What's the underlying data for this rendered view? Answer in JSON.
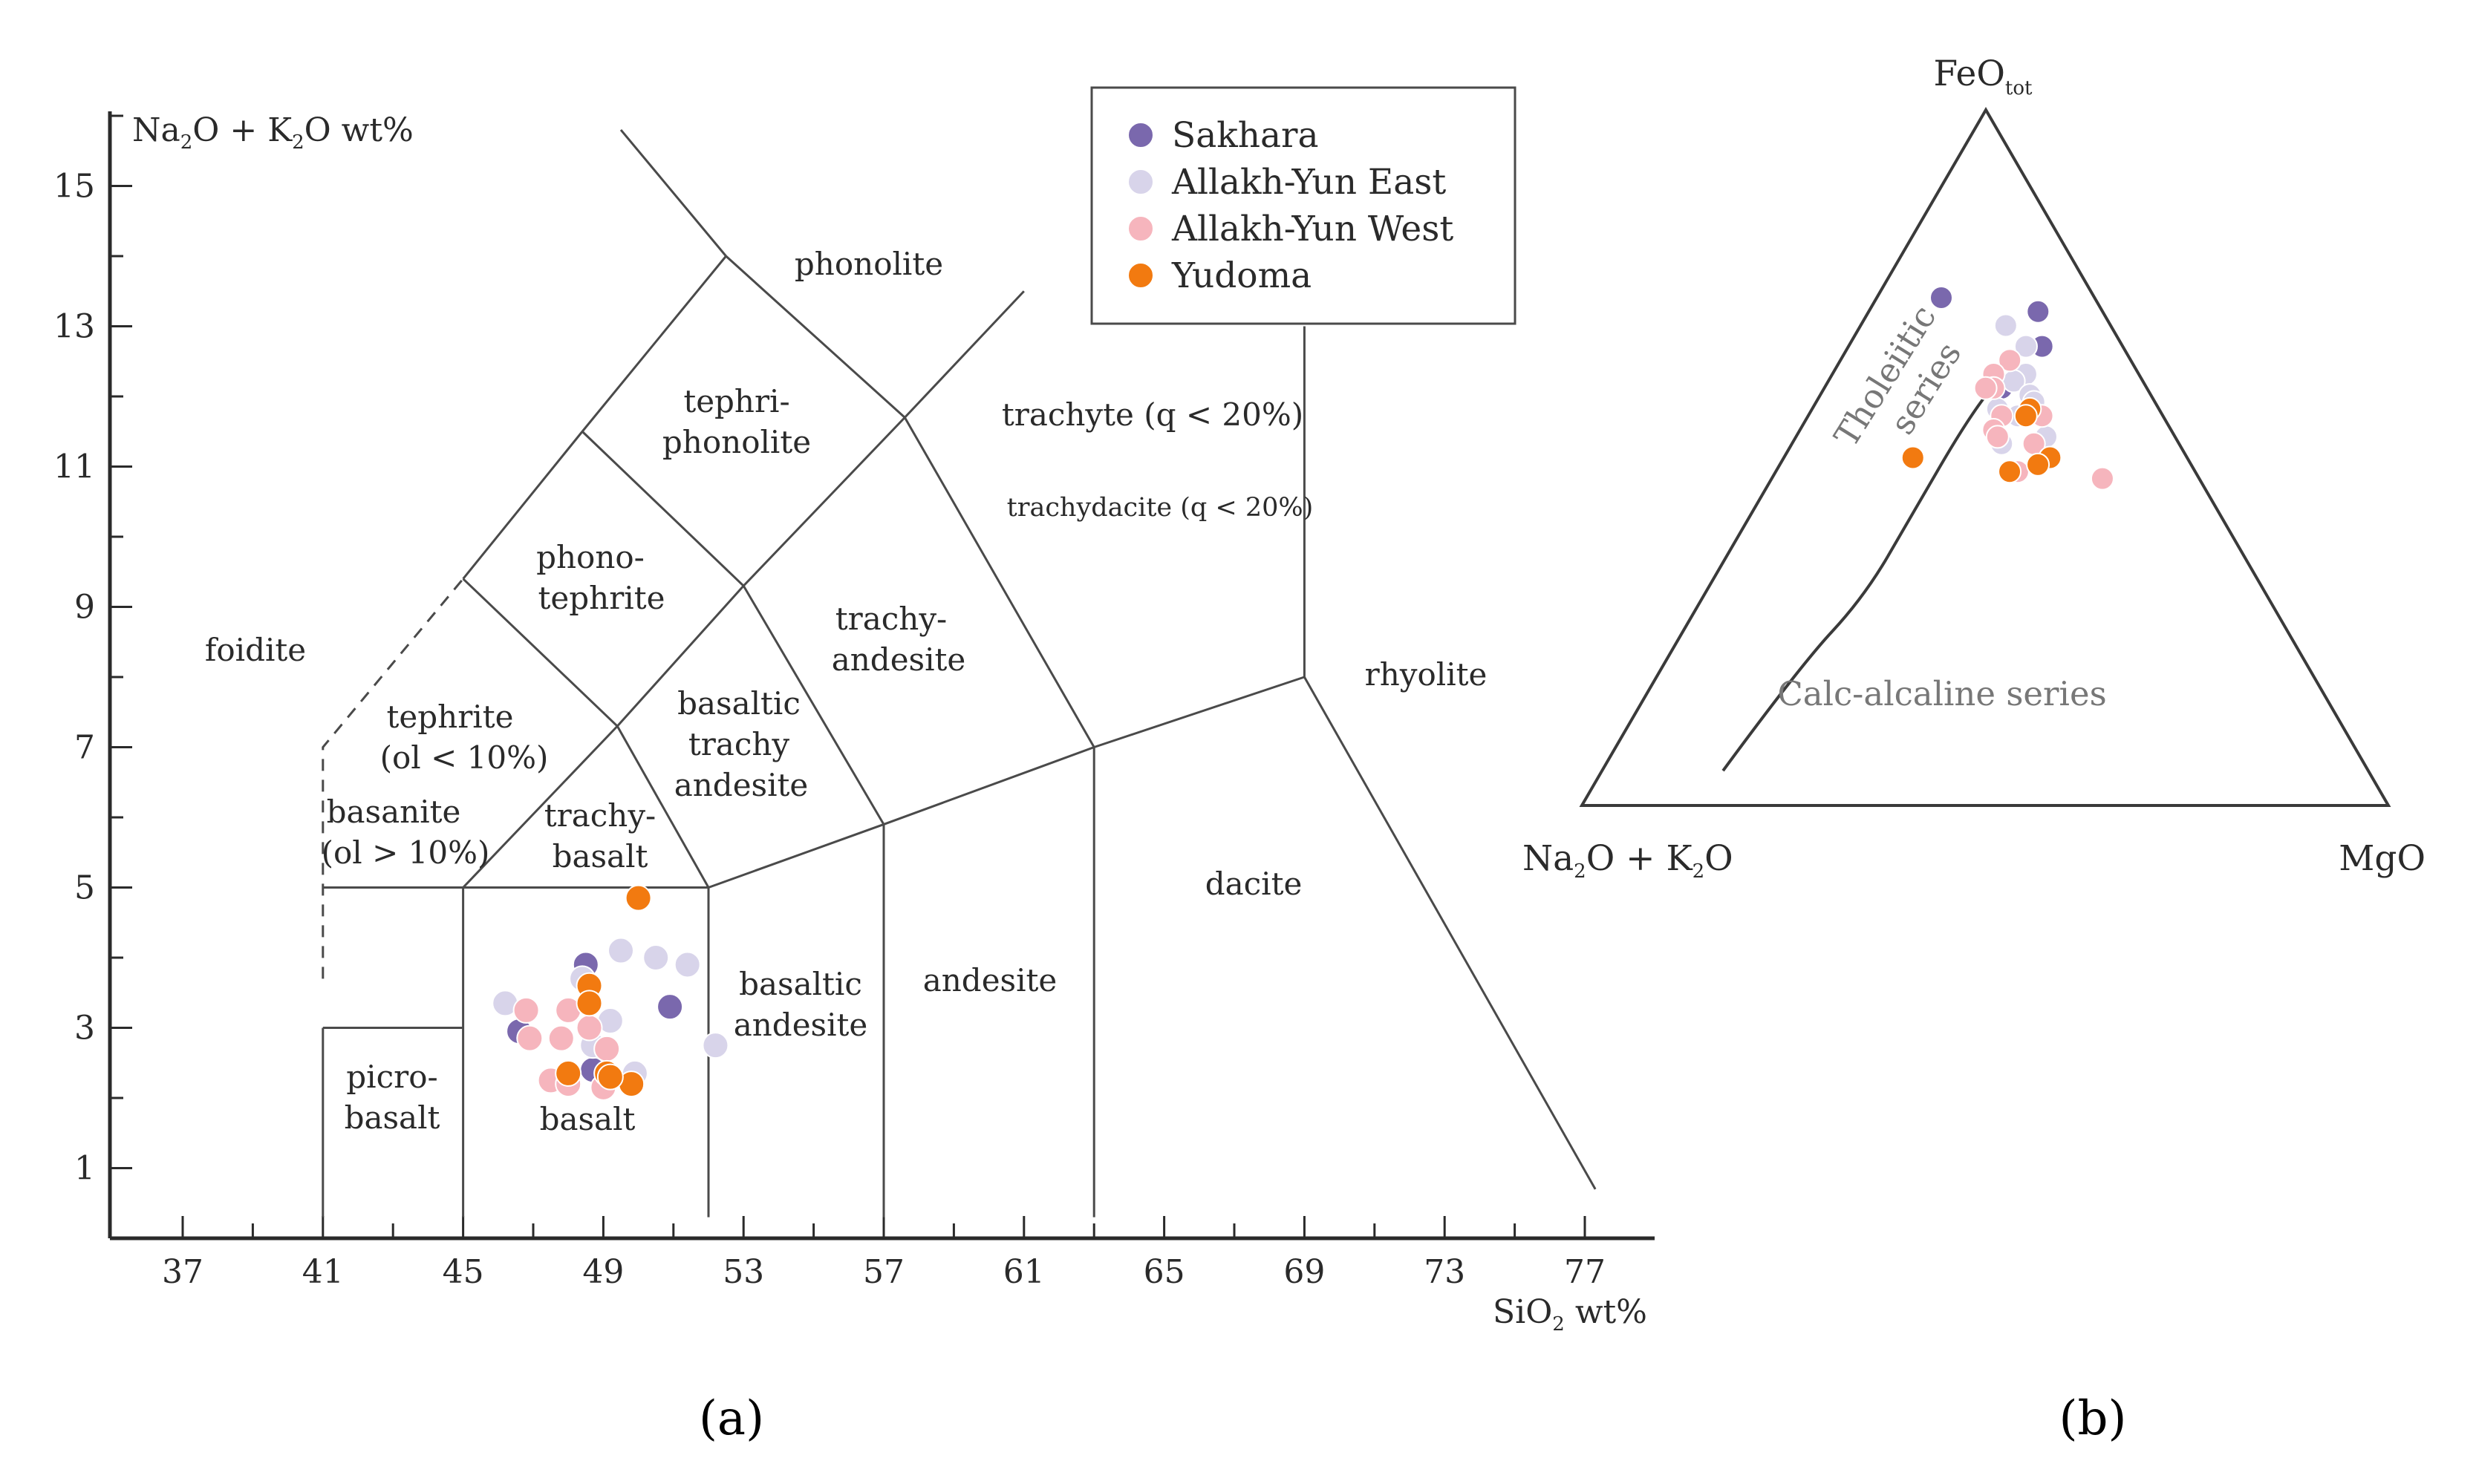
{
  "colors": {
    "sakhara": "#7a68ad",
    "allakh_east": "#d8d4ea",
    "allakh_west": "#f6b5bd",
    "yudoma": "#f27a10",
    "stroke": "#4a4a4a"
  },
  "panel_labels": {
    "a": "(a)",
    "b": "(b)"
  },
  "chart_data": [
    {
      "type": "scatter",
      "title": "",
      "xlabel": {
        "main": "SiO",
        "sub": "2",
        "rest": " wt%"
      },
      "ylabel": {
        "a": "Na",
        "a_sub": "2",
        "b": "O + K",
        "b_sub": "2",
        "c": "O wt%"
      },
      "xlim": [
        35,
        79
      ],
      "ylim": [
        0,
        16
      ],
      "xticks": [
        "37",
        "41",
        "45",
        "49",
        "53",
        "57",
        "61",
        "65",
        "69",
        "73",
        "77"
      ],
      "yticks": [
        "1",
        "3",
        "5",
        "7",
        "9",
        "11",
        "13",
        "15"
      ],
      "legend": {
        "position": "top-right",
        "entries": [
          "Sakhara",
          "Allakh-Yun East",
          "Allakh-Yun West",
          "Yudoma"
        ]
      },
      "field_labels": {
        "foidite": [
          "foidite"
        ],
        "phonolite": [
          "phonolite"
        ],
        "tephriphonolite": [
          "tephri-",
          "phonolite"
        ],
        "phonotephrite": [
          "phono-",
          "tephrite"
        ],
        "tephrite": [
          "tephrite",
          "(ol < 10%)"
        ],
        "basanite": [
          "basanite",
          "(ol > 10%)"
        ],
        "trachybasalt": [
          "trachy-",
          "basalt"
        ],
        "basaltic_trachyandesite": [
          "basaltic",
          "trachy",
          "andesite"
        ],
        "trachyandesite": [
          "trachy-",
          "andesite"
        ],
        "trachyte": [
          "trachyte (q < 20%)"
        ],
        "trachydacite": [
          "trachydacite (q < 20%)"
        ],
        "rhyolite": [
          "rhyolite"
        ],
        "dacite": [
          "dacite"
        ],
        "andesite": [
          "andesite"
        ],
        "basaltic_andesite": [
          "basaltic",
          "andesite"
        ],
        "basalt": [
          "basalt"
        ],
        "picrobasalt": [
          "picro-",
          "basalt"
        ]
      },
      "series": [
        {
          "name": "Sakhara",
          "key": "sakhara",
          "points": [
            [
              48.5,
              3.9
            ],
            [
              50.9,
              3.3
            ],
            [
              46.6,
              2.95
            ],
            [
              48.7,
              2.4
            ]
          ]
        },
        {
          "name": "Allakh-Yun East",
          "key": "allakh_east",
          "points": [
            [
              49.5,
              4.1
            ],
            [
              50.5,
              4.0
            ],
            [
              51.4,
              3.9
            ],
            [
              48.4,
              3.7
            ],
            [
              46.2,
              3.35
            ],
            [
              49.2,
              3.1
            ],
            [
              48.7,
              2.75
            ],
            [
              52.2,
              2.75
            ],
            [
              49.9,
              2.35
            ],
            [
              48.0,
              2.3
            ]
          ]
        },
        {
          "name": "Allakh-Yun West",
          "key": "allakh_west",
          "points": [
            [
              46.8,
              3.25
            ],
            [
              48.0,
              3.25
            ],
            [
              48.6,
              3.0
            ],
            [
              46.9,
              2.85
            ],
            [
              47.8,
              2.85
            ],
            [
              49.1,
              2.7
            ],
            [
              47.5,
              2.25
            ],
            [
              48.0,
              2.2
            ],
            [
              49.0,
              2.15
            ]
          ]
        },
        {
          "name": "Yudoma",
          "key": "yudoma",
          "points": [
            [
              50.0,
              4.85
            ],
            [
              48.6,
              3.6
            ],
            [
              48.6,
              3.35
            ],
            [
              48.0,
              2.35
            ],
            [
              49.1,
              2.35
            ],
            [
              49.8,
              2.2
            ],
            [
              49.2,
              2.3
            ]
          ]
        }
      ]
    },
    {
      "type": "scatter",
      "subtype": "ternary",
      "title": "",
      "apex_labels": {
        "top": {
          "main": "FeO",
          "sub": "tot"
        },
        "left": {
          "a": "Na",
          "a_sub": "2",
          "b": "O + K",
          "b_sub": "2",
          "c": "O"
        },
        "right": "MgO"
      },
      "series_labels": {
        "tholeiitic": [
          "Tholeiitic",
          "series"
        ],
        "calc_alkaline": "Calc-alcaline series"
      },
      "boundary_curve": [
        [
          0.8,
          0.05,
          0.15
        ],
        [
          0.63,
          0.2,
          0.17
        ],
        [
          0.5,
          0.3,
          0.2
        ],
        [
          0.38,
          0.42,
          0.2
        ],
        [
          0.25,
          0.55,
          0.2
        ],
        [
          0.17,
          0.62,
          0.21
        ]
      ],
      "series": [
        {
          "name": "Sakhara",
          "key": "sakhara",
          "points": [
            [
              0.19,
              0.73,
              0.08
            ],
            [
              0.18,
              0.6,
              0.22
            ],
            [
              0.08,
              0.71,
              0.21
            ],
            [
              0.1,
              0.66,
              0.24
            ]
          ]
        },
        {
          "name": "Allakh-Yun East",
          "key": "allakh_east",
          "points": [
            [
              0.13,
              0.69,
              0.18
            ],
            [
              0.12,
              0.66,
              0.22
            ],
            [
              0.14,
              0.62,
              0.24
            ],
            [
              0.16,
              0.61,
              0.23
            ],
            [
              0.15,
              0.59,
              0.26
            ],
            [
              0.15,
              0.58,
              0.27
            ],
            [
              0.2,
              0.57,
              0.23
            ],
            [
              0.18,
              0.56,
              0.26
            ],
            [
              0.22,
              0.52,
              0.26
            ],
            [
              0.17,
              0.5,
              0.33
            ],
            [
              0.16,
              0.53,
              0.31
            ]
          ]
        },
        {
          "name": "Allakh-Yun West",
          "key": "allakh_west",
          "points": [
            [
              0.15,
              0.64,
              0.21
            ],
            [
              0.18,
              0.62,
              0.2
            ],
            [
              0.19,
              0.6,
              0.21
            ],
            [
              0.2,
              0.6,
              0.2
            ],
            [
              0.2,
              0.56,
              0.24
            ],
            [
              0.22,
              0.54,
              0.24
            ],
            [
              0.15,
              0.56,
              0.29
            ],
            [
              0.18,
              0.52,
              0.3
            ],
            [
              0.22,
              0.48,
              0.3
            ],
            [
              0.12,
              0.47,
              0.41
            ],
            [
              0.22,
              0.53,
              0.25
            ]
          ]
        },
        {
          "name": "Yudoma",
          "key": "yudoma",
          "points": [
            [
              0.16,
              0.57,
              0.27
            ],
            [
              0.17,
              0.56,
              0.27
            ],
            [
              0.17,
              0.5,
              0.33
            ],
            [
              0.19,
              0.49,
              0.32
            ],
            [
              0.23,
              0.48,
              0.29
            ],
            [
              0.34,
              0.5,
              0.16
            ]
          ]
        }
      ]
    }
  ]
}
